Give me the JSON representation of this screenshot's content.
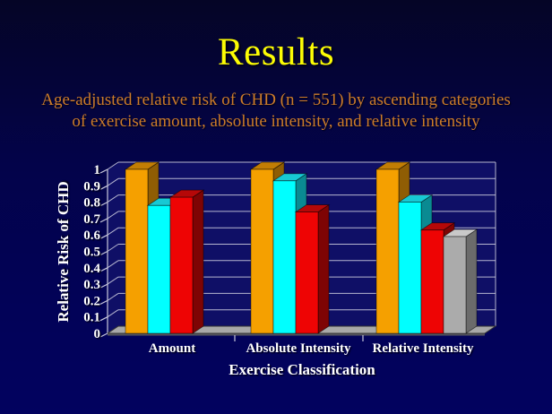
{
  "slide": {
    "title": "Results",
    "subtitle_lines": [
      "Age-adjusted relative risk of CHD (n = 551) by ascending categories",
      "of exercise amount, absolute intensity, and relative intensity"
    ],
    "colors": {
      "title_text": "#FCFC04",
      "subtitle_text": "#CC7C2B",
      "background_top": "#050526",
      "background_bottom": "#02025F"
    }
  },
  "chart_data": {
    "type": "bar",
    "projection": "3d",
    "title": "",
    "xlabel": "Exercise Classification",
    "ylabel": "Relative Risk of CHD",
    "ylim": [
      0,
      1
    ],
    "ytick_step": 0.1,
    "ytick_labels": [
      "0",
      "0.1",
      "0.2",
      "0.3",
      "0.4",
      "0.5",
      "0.6",
      "0.7",
      "0.8",
      "0.9",
      "1"
    ],
    "categories": [
      "Amount",
      "Absolute Intensity",
      "Relative Intensity"
    ],
    "groups": [
      {
        "category": "Amount",
        "values": [
          1.0,
          0.78,
          0.83
        ]
      },
      {
        "category": "Absolute Intensity",
        "values": [
          1.0,
          0.93,
          0.74
        ]
      },
      {
        "category": "Relative Intensity",
        "values": [
          1.0,
          0.8,
          0.63,
          0.59
        ]
      }
    ],
    "series_note": "ascending exposure categories left-to-right within each group; no legend shown",
    "bar_colors": [
      {
        "name": "orange",
        "front": "#F5A000",
        "side": "#8F5D04",
        "top": "#C17D04"
      },
      {
        "name": "cyan",
        "front": "#00FFFF",
        "side": "#0A8A92",
        "top": "#17C9D4"
      },
      {
        "name": "red",
        "front": "#EE0404",
        "side": "#7E0404",
        "top": "#B50808"
      },
      {
        "name": "gray",
        "front": "#ABABAB",
        "side": "#6B6B6B",
        "top": "#C9C9C9"
      }
    ],
    "grid": true,
    "legend": "none",
    "text_color": "#FFFFFF",
    "gridline_color": "#C9C9DC",
    "wall_color": "#0F0F66",
    "floor_color": "#A8A8A8"
  }
}
